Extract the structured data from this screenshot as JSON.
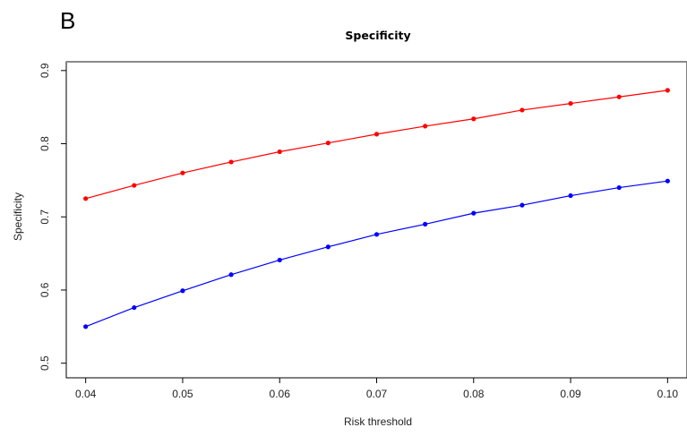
{
  "panel_label": "B",
  "chart_data": {
    "type": "line",
    "title": "Specificity",
    "xlabel": "Risk threshold",
    "ylabel": "Specificity",
    "xlim": [
      0.038,
      0.102
    ],
    "ylim": [
      0.48,
      0.912
    ],
    "x_ticks": [
      "0.04",
      "0.05",
      "0.06",
      "0.07",
      "0.08",
      "0.09",
      "0.10"
    ],
    "y_ticks": [
      "0.5",
      "0.6",
      "0.7",
      "0.8",
      "0.9"
    ],
    "x": [
      0.04,
      0.045,
      0.05,
      0.055,
      0.06,
      0.065,
      0.07,
      0.075,
      0.08,
      0.085,
      0.09,
      0.095,
      0.1
    ],
    "series": [
      {
        "color": "#ff0000",
        "values": [
          0.725,
          0.743,
          0.76,
          0.775,
          0.789,
          0.801,
          0.813,
          0.824,
          0.834,
          0.846,
          0.855,
          0.864,
          0.873
        ]
      },
      {
        "color": "#0000ff",
        "values": [
          0.55,
          0.576,
          0.599,
          0.621,
          0.641,
          0.659,
          0.676,
          0.69,
          0.705,
          0.716,
          0.729,
          0.74,
          0.749
        ]
      }
    ],
    "grid": false,
    "legend": "none"
  }
}
